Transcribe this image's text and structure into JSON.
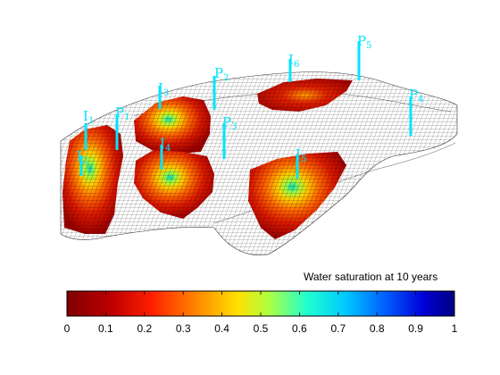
{
  "colorbar": {
    "title": "Water saturation at 10 years",
    "ticks": [
      "0",
      "0.1",
      "0.2",
      "0.3",
      "0.4",
      "0.5",
      "0.6",
      "0.7",
      "0.8",
      "0.9",
      "1"
    ],
    "colormap": "jet (reversed: 0 = dark red, 1 = dark blue)"
  },
  "wells": [
    {
      "name": "I",
      "sub": "1",
      "type": "injector"
    },
    {
      "name": "I",
      "sub": "2",
      "type": "injector"
    },
    {
      "name": "I",
      "sub": "3",
      "type": "injector"
    },
    {
      "name": "I",
      "sub": "4",
      "type": "injector"
    },
    {
      "name": "I",
      "sub": "5",
      "type": "injector"
    },
    {
      "name": "I",
      "sub": "6",
      "type": "injector"
    },
    {
      "name": "P",
      "sub": "1",
      "type": "producer"
    },
    {
      "name": "P",
      "sub": "2",
      "type": "producer"
    },
    {
      "name": "P",
      "sub": "3",
      "type": "producer"
    },
    {
      "name": "P",
      "sub": "4",
      "type": "producer"
    },
    {
      "name": "P",
      "sub": "5",
      "type": "producer"
    }
  ],
  "colors": {
    "well": "#00e5ff",
    "grid": "#1a1a1a"
  }
}
